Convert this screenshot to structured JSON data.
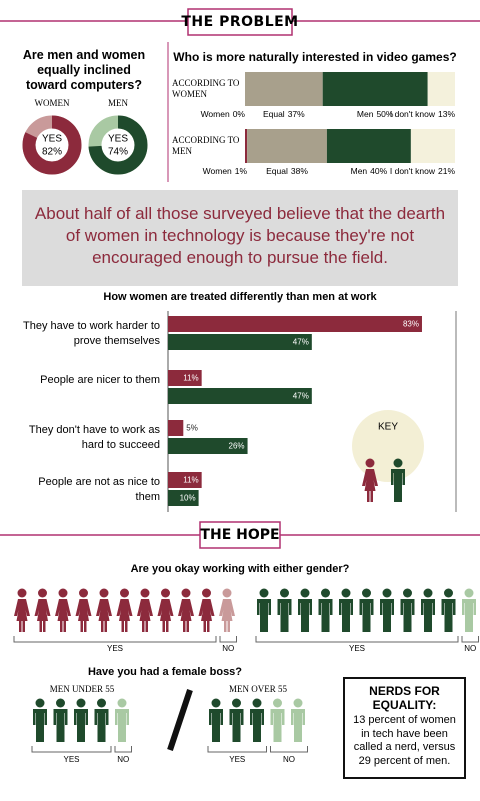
{
  "problem": {
    "header": "THE PROBLEM",
    "computers": {
      "title": "Are men and women equally inclined toward computers?",
      "lim": [
        0,
        100
      ],
      "donuts": [
        {
          "name": "WOMEN",
          "label": "YES",
          "value": 82,
          "value_label": "82%",
          "color": "#8c2a3c",
          "rest_color": "#c99a9a"
        },
        {
          "name": "MEN",
          "label": "YES",
          "value": 74,
          "value_label": "74%",
          "color": "#1f4a2c",
          "rest_color": "#a9c9a3"
        }
      ]
    },
    "games": {
      "title": "Who is more naturally interested in video games?",
      "xlim": [
        0,
        100
      ],
      "segment_colors": [
        "#8c2a3c",
        "#a8a08c",
        "#1f4a2c",
        "#f4f1dc"
      ],
      "rows": [
        {
          "name": "ACCORDING TO WOMEN",
          "segments": [
            {
              "name": "Women",
              "value": 0,
              "value_label": "0%"
            },
            {
              "name": "Equal",
              "value": 37,
              "value_label": "37%"
            },
            {
              "name": "Men",
              "value": 50,
              "value_label": "50%"
            },
            {
              "name": "I don't know",
              "value": 13,
              "value_label": "13%"
            }
          ]
        },
        {
          "name": "ACCORDING TO MEN",
          "segments": [
            {
              "name": "Women",
              "value": 1,
              "value_label": "1%"
            },
            {
              "name": "Equal",
              "value": 38,
              "value_label": "38%"
            },
            {
              "name": "Men",
              "value": 40,
              "value_label": "40%"
            },
            {
              "name": "I don't know",
              "value": 21,
              "value_label": "21%"
            }
          ]
        }
      ]
    }
  },
  "quote": "About half of all those surveyed believe that the dearth of women in technology is because they're not encouraged enough to pursue the field.",
  "treated": {
    "type": "bar",
    "title": "How women are treated differently than men at work",
    "categories": [
      "They have to work harder to prove themselves",
      "People are nicer to them",
      "They don't have to work as hard to succeed",
      "People are not as nice to them"
    ],
    "xlim": [
      0,
      100
    ],
    "series": [
      {
        "color": "#8c2a3c",
        "values": [
          83,
          11,
          5,
          11
        ],
        "value_labels": [
          "83%",
          "11%",
          "5%",
          "11%"
        ]
      },
      {
        "color": "#1f4a2c",
        "values": [
          47,
          47,
          26,
          10
        ],
        "value_labels": [
          "47%",
          "47%",
          "26%",
          "10%"
        ]
      }
    ],
    "key": "KEY"
  },
  "hope": {
    "header": "THE HOPE",
    "either": {
      "title": "Are you okay working with either gender?",
      "yes_label": "YES",
      "no_label": "NO",
      "groups": [
        {
          "figure": "woman",
          "yes": 10,
          "no": 1,
          "color": "#8c2a3c",
          "no_color": "#c99a9a"
        },
        {
          "figure": "man",
          "yes": 10,
          "no": 1,
          "color": "#1f4a2c",
          "no_color": "#a9c9a3"
        }
      ]
    },
    "boss": {
      "title": "Have you had a female boss?",
      "yes_label": "YES",
      "no_label": "NO",
      "color": "#1f4a2c",
      "no_color": "#a9c9a3",
      "groups": [
        {
          "name": "MEN UNDER 55",
          "yes": 4,
          "no": 1
        },
        {
          "name": "MEN OVER 55",
          "yes": 3,
          "no": 2
        }
      ]
    },
    "nerds": {
      "title": "NERDS FOR EQUALITY:",
      "text": "13 percent of women in tech have been called a nerd, versus 29 percent of men."
    }
  }
}
